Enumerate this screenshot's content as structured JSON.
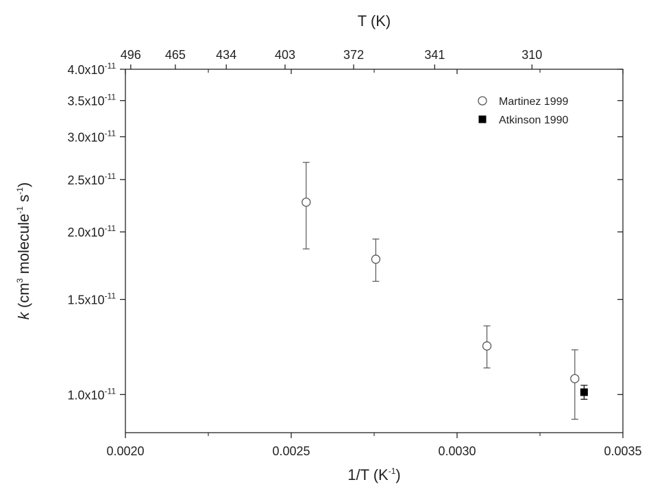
{
  "chart_data": {
    "type": "scatter",
    "xlabel": {
      "main": "1/T (K",
      "sup": "-1",
      "close": ")"
    },
    "x2label": "T (K)",
    "ylabel": {
      "k": "k",
      "p1": " (cm",
      "s1": "3",
      "p2": " molecule",
      "s2": "-1",
      "p3": " s",
      "s3": "-1",
      "p4": ")"
    },
    "xlim": [
      0.002,
      0.0035
    ],
    "ylim": [
      8.5e-12,
      4e-11
    ],
    "yscale": "log",
    "grid": false,
    "legend_position": "top-right",
    "x_ticks": [
      {
        "value": 0.002,
        "label": "0.0020"
      },
      {
        "value": 0.0025,
        "label": "0.0025"
      },
      {
        "value": 0.003,
        "label": "0.0030"
      },
      {
        "value": 0.0035,
        "label": "0.0035"
      }
    ],
    "x_minor_ticks": [
      0.00225,
      0.00275,
      0.00325
    ],
    "x2_ticks": [
      {
        "value": 496,
        "label": "496"
      },
      {
        "value": 465,
        "label": "465"
      },
      {
        "value": 434,
        "label": "434"
      },
      {
        "value": 403,
        "label": "403"
      },
      {
        "value": 372,
        "label": "372"
      },
      {
        "value": 341,
        "label": "341"
      },
      {
        "value": 310,
        "label": "310"
      }
    ],
    "y_ticks": [
      {
        "value": 1e-11,
        "mant": "1.0x10",
        "exp": "-11"
      },
      {
        "value": 1.5e-11,
        "mant": "1.5x10",
        "exp": "-11"
      },
      {
        "value": 2e-11,
        "mant": "2.0x10",
        "exp": "-11"
      },
      {
        "value": 2.5e-11,
        "mant": "2.5x10",
        "exp": "-11"
      },
      {
        "value": 3e-11,
        "mant": "3.0x10",
        "exp": "-11"
      },
      {
        "value": 3.5e-11,
        "mant": "3.5x10",
        "exp": "-11"
      },
      {
        "value": 4e-11,
        "mant": "4.0x10",
        "exp": "-11"
      }
    ],
    "series": [
      {
        "name": "Martinez 1999",
        "marker": "open-circle",
        "color": "#555555",
        "points": [
          {
            "x": 0.002545,
            "y": 2.27e-11,
            "ylow": 1.86e-11,
            "yhigh": 2.69e-11
          },
          {
            "x": 0.002755,
            "y": 1.78e-11,
            "ylow": 1.62e-11,
            "yhigh": 1.94e-11
          },
          {
            "x": 0.00309,
            "y": 1.23e-11,
            "ylow": 1.12e-11,
            "yhigh": 1.34e-11
          },
          {
            "x": 0.003355,
            "y": 1.07e-11,
            "ylow": 9e-12,
            "yhigh": 1.21e-11
          }
        ]
      },
      {
        "name": "Atkinson 1990",
        "marker": "filled-square",
        "color": "#000000",
        "points": [
          {
            "x": 0.003383,
            "y": 1.01e-11,
            "ylow": 9.8e-12,
            "yhigh": 1.04e-11
          }
        ]
      }
    ]
  }
}
